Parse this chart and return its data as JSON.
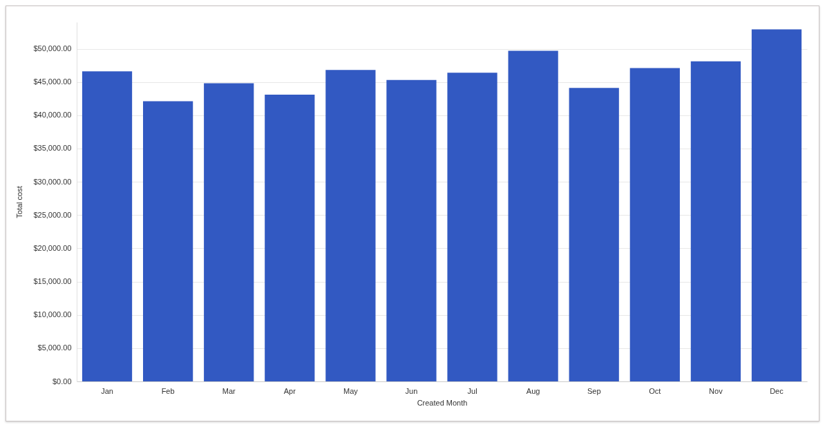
{
  "chart_data": {
    "type": "bar",
    "xlabel": "Created Month",
    "ylabel": "Total cost",
    "categories": [
      "Jan",
      "Feb",
      "Mar",
      "Apr",
      "May",
      "Jun",
      "Jul",
      "Aug",
      "Sep",
      "Oct",
      "Nov",
      "Dec"
    ],
    "values": [
      46600,
      42100,
      44800,
      43100,
      46800,
      45300,
      46400,
      49700,
      44100,
      47100,
      48100,
      52900
    ],
    "color": "#3259c2",
    "ylim": [
      0,
      54000
    ],
    "yticks": [
      {
        "value": 0,
        "label": "$0.00"
      },
      {
        "value": 5000,
        "label": "$5,000.00"
      },
      {
        "value": 10000,
        "label": "$10,000.00"
      },
      {
        "value": 15000,
        "label": "$15,000.00"
      },
      {
        "value": 20000,
        "label": "$20,000.00"
      },
      {
        "value": 25000,
        "label": "$25,000.00"
      },
      {
        "value": 30000,
        "label": "$30,000.00"
      },
      {
        "value": 35000,
        "label": "$35,000.00"
      },
      {
        "value": 40000,
        "label": "$40,000.00"
      },
      {
        "value": 45000,
        "label": "$45,000.00"
      },
      {
        "value": 50000,
        "label": "$50,000.00"
      }
    ],
    "grid": "y"
  }
}
